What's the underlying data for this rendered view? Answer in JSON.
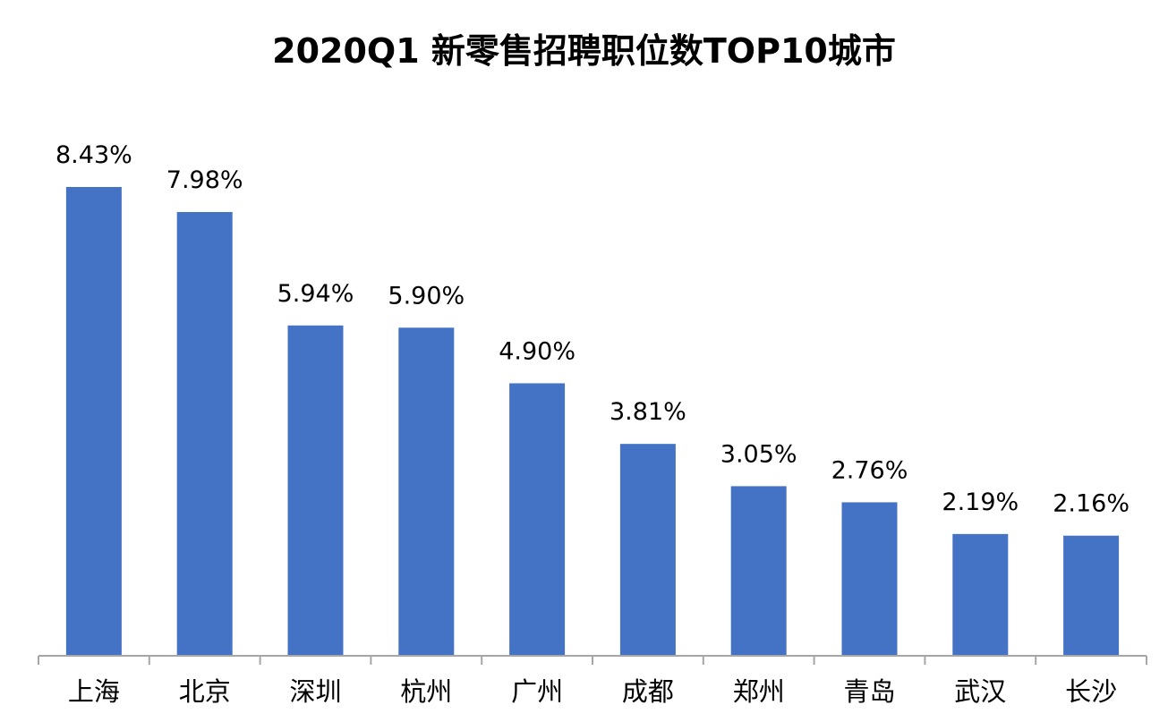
{
  "chart_data": {
    "type": "bar",
    "title": "2020Q1 新零售招聘职位数TOP10城市",
    "categories": [
      "上海",
      "北京",
      "深圳",
      "杭州",
      "广州",
      "成都",
      "郑州",
      "青岛",
      "武汉",
      "长沙"
    ],
    "values": [
      8.43,
      7.98,
      5.94,
      5.9,
      4.9,
      3.81,
      3.05,
      2.76,
      2.19,
      2.16
    ],
    "data_labels": [
      "8.43%",
      "7.98%",
      "5.94%",
      "5.90%",
      "4.90%",
      "3.81%",
      "3.05%",
      "2.76%",
      "2.19%",
      "2.16%"
    ],
    "xlabel": "",
    "ylabel": "",
    "ylim": [
      0,
      8.43
    ],
    "grid": false,
    "legend": "none",
    "bar_color": "#4472C4",
    "axis_color": "#A6A6A6"
  }
}
